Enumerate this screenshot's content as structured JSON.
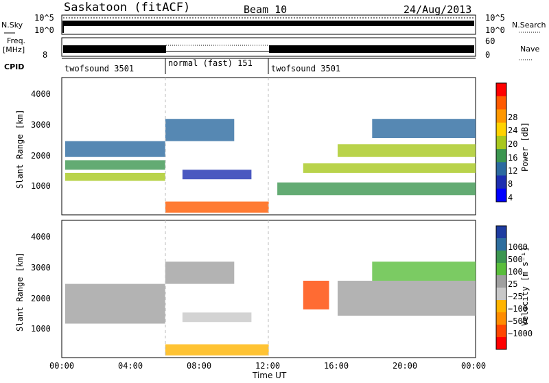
{
  "header": {
    "station": "Saskatoon (fitACF)",
    "beam": "Beam 10",
    "date": "24/Aug/2013"
  },
  "noise_panel": {
    "left_label": "N.Sky",
    "right_label": "N.Search",
    "ticks_left": [
      "10^5",
      "10^0"
    ],
    "ticks_right": [
      "10^5",
      "10^0"
    ]
  },
  "freq_panel": {
    "left_label_1": "Freq.",
    "left_label_2": "[MHz]",
    "right_label": "Nave",
    "ticks_left": [
      "8"
    ],
    "ticks_right": [
      "60",
      "0"
    ]
  },
  "cpid": {
    "label": "CPID",
    "segments": [
      {
        "name": "twofsound 3501",
        "start_hour": 0,
        "end_hour": 6
      },
      {
        "name": "normal (fast) 151",
        "start_hour": 6,
        "end_hour": 12
      },
      {
        "name": "twofsound 3501",
        "start_hour": 12,
        "end_hour": 24
      }
    ]
  },
  "chart_data": [
    {
      "type": "heatmap",
      "parameter": "Power",
      "ylabel": "Slant Range [km]",
      "ylim": [
        180,
        4500
      ],
      "xlim": [
        0,
        24
      ],
      "y_ticks": [
        "1000",
        "2000",
        "3000",
        "4000"
      ],
      "colorbar": {
        "label": "Power [dB]",
        "ticks": [
          "28",
          "24",
          "20",
          "16",
          "12",
          "8",
          "4"
        ],
        "colors": [
          "#ff0000",
          "#ff5a00",
          "#ff9800",
          "#ffd200",
          "#a8c81e",
          "#3c9650",
          "#2c6aa0",
          "#1d2eb0",
          "#0000ff"
        ]
      },
      "echo_bands": [
        {
          "start_hour": 0.2,
          "end_hour": 6,
          "range_start_km": 1250,
          "range_end_km": 1500,
          "level": 4
        },
        {
          "start_hour": 0.2,
          "end_hour": 6,
          "range_start_km": 1600,
          "range_end_km": 1900,
          "level": 5
        },
        {
          "start_hour": 0.2,
          "end_hour": 6,
          "range_start_km": 2000,
          "range_end_km": 2500,
          "level": 6
        },
        {
          "start_hour": 6,
          "end_hour": 10,
          "range_start_km": 2500,
          "range_end_km": 3200,
          "level": 6
        },
        {
          "start_hour": 7,
          "end_hour": 11,
          "range_start_km": 1300,
          "range_end_km": 1600,
          "level": 7
        },
        {
          "start_hour": 6,
          "end_hour": 12,
          "range_start_km": 250,
          "range_end_km": 600,
          "level": 1
        },
        {
          "start_hour": 12.5,
          "end_hour": 24,
          "range_start_km": 800,
          "range_end_km": 1200,
          "level": 5
        },
        {
          "start_hour": 14,
          "end_hour": 24,
          "range_start_km": 1500,
          "range_end_km": 1800,
          "level": 4
        },
        {
          "start_hour": 16,
          "end_hour": 24,
          "range_start_km": 2000,
          "range_end_km": 2400,
          "level": 4
        },
        {
          "start_hour": 18,
          "end_hour": 24,
          "range_start_km": 2600,
          "range_end_km": 3200,
          "level": 6
        }
      ]
    },
    {
      "type": "heatmap",
      "parameter": "Velocity",
      "ylabel": "Slant Range [km]",
      "xlabel": "Time UT",
      "ylim": [
        180,
        4500
      ],
      "xlim": [
        0,
        24
      ],
      "y_ticks": [
        "1000",
        "2000",
        "3000",
        "4000"
      ],
      "x_ticks": [
        "00:00",
        "04:00",
        "08:00",
        "12:00",
        "16:00",
        "20:00",
        "00:00"
      ],
      "colorbar": {
        "label": "Velocity [m s⁻¹]",
        "ticks": [
          "1000",
          "500",
          "100",
          "25",
          "−25",
          "−100",
          "−500",
          "−1000"
        ],
        "colors": [
          "#1e3ca0",
          "#2e6e9e",
          "#3c9650",
          "#5abe3c",
          "#a0a0a0",
          "#c8c8c8",
          "#ffb400",
          "#ff8c00",
          "#ff4600",
          "#ff0000"
        ]
      },
      "echo_bands": [
        {
          "start_hour": 0.2,
          "end_hour": 6,
          "range_start_km": 1250,
          "range_end_km": 2500,
          "level": 4
        },
        {
          "start_hour": 6,
          "end_hour": 10,
          "range_start_km": 2500,
          "range_end_km": 3200,
          "level": 4
        },
        {
          "start_hour": 7,
          "end_hour": 11,
          "range_start_km": 1300,
          "range_end_km": 1600,
          "level": 5
        },
        {
          "start_hour": 6,
          "end_hour": 12,
          "range_start_km": 250,
          "range_end_km": 600,
          "level": 6
        },
        {
          "start_hour": 14,
          "end_hour": 15.5,
          "range_start_km": 1700,
          "range_end_km": 2600,
          "level": 8
        },
        {
          "start_hour": 16,
          "end_hour": 24,
          "range_start_km": 1500,
          "range_end_km": 2600,
          "level": 4
        },
        {
          "start_hour": 18,
          "end_hour": 24,
          "range_start_km": 2600,
          "range_end_km": 3200,
          "level": 3
        }
      ]
    }
  ]
}
